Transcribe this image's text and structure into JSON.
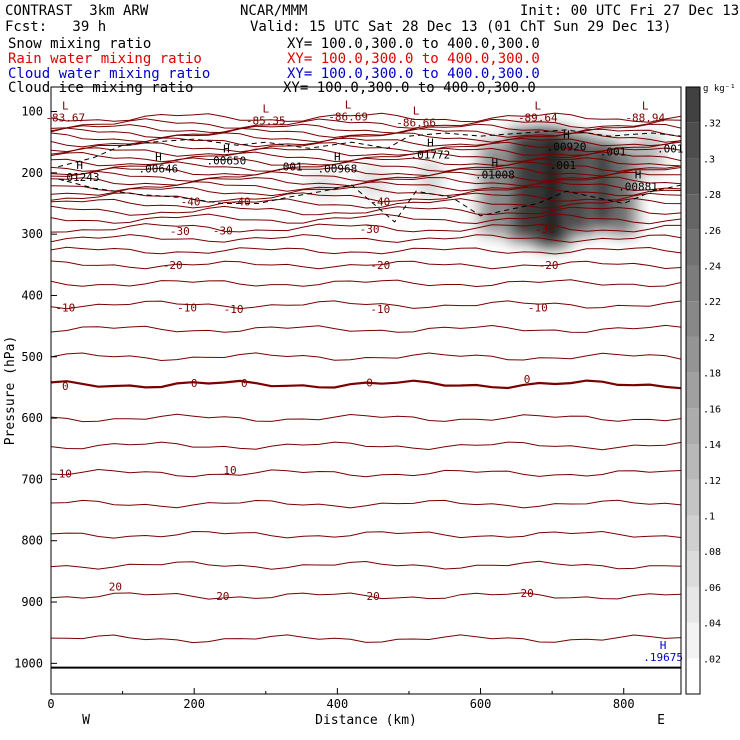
{
  "header": {
    "model": "CONTRAST  3km ARW",
    "center": "NCAR/MMM",
    "init": "Init: 00 UTC Fri 27 Dec 13",
    "fcst": "Fcst:   39 h",
    "valid": "Valid: 15 UTC Sat 28 Dec 13 (01 ChT Sun 29 Dec 13)"
  },
  "legend": [
    {
      "label": "Snow mixing ratio",
      "xy": "XY= 100.0,300.0 to 400.0,300.0",
      "color": "#000000"
    },
    {
      "label": "Rain water mixing ratio",
      "xy": "XY= 100.0,300.0 to 400.0,300.0",
      "color": "#e00000"
    },
    {
      "label": "Cloud water mixing ratio",
      "xy": "XY= 100.0,300.0 to 400.0,300.0",
      "color": "#0000cc"
    },
    {
      "label": "Cloud ice mixing ratio",
      "xy": "XY= 100.0,300.0 to 400.0,300.0",
      "color": "#000000"
    }
  ],
  "colors": {
    "temperature_contour": "#7a0000",
    "shading": "#000000",
    "cloud_water_label": "#0000cc"
  },
  "chart_data": {
    "type": "cross-section",
    "xlabel": "Distance (km)",
    "ylabel": "Pressure (hPa)",
    "xlim": [
      0,
      880
    ],
    "ylim": [
      1050,
      60
    ],
    "x_ticks": [
      0,
      200,
      400,
      600,
      800
    ],
    "y_ticks": [
      100,
      200,
      300,
      400,
      500,
      600,
      700,
      800,
      900,
      1000
    ],
    "x_end_labels": {
      "left": "W",
      "right": "E"
    },
    "colorbar": {
      "unit": "g kg⁻¹",
      "ticks": [
        ".02",
        ".04",
        ".06",
        ".08",
        ".1",
        ".12",
        ".14",
        ".16",
        ".18",
        ".2",
        ".22",
        ".24",
        ".26",
        ".28",
        ".3",
        ".32"
      ]
    },
    "temperature_contour_labels": [
      {
        "x": 20,
        "p": 690,
        "text": "10"
      },
      {
        "x": 250,
        "p": 685,
        "text": "10"
      },
      {
        "x": 90,
        "p": 875,
        "text": "20"
      },
      {
        "x": 240,
        "p": 890,
        "text": "20"
      },
      {
        "x": 450,
        "p": 890,
        "text": "20"
      },
      {
        "x": 665,
        "p": 885,
        "text": "20"
      },
      {
        "x": 20,
        "p": 548,
        "text": "0"
      },
      {
        "x": 200,
        "p": 543,
        "text": "0"
      },
      {
        "x": 270,
        "p": 543,
        "text": "0"
      },
      {
        "x": 445,
        "p": 542,
        "text": "0"
      },
      {
        "x": 665,
        "p": 536,
        "text": "0"
      },
      {
        "x": 20,
        "p": 420,
        "text": "-10"
      },
      {
        "x": 190,
        "p": 420,
        "text": "-10"
      },
      {
        "x": 255,
        "p": 422,
        "text": "-10"
      },
      {
        "x": 460,
        "p": 422,
        "text": "-10"
      },
      {
        "x": 680,
        "p": 420,
        "text": "-10"
      },
      {
        "x": 170,
        "p": 350,
        "text": "-20"
      },
      {
        "x": 460,
        "p": 350,
        "text": "-20"
      },
      {
        "x": 695,
        "p": 350,
        "text": "-20"
      },
      {
        "x": 180,
        "p": 295,
        "text": "-30"
      },
      {
        "x": 240,
        "p": 294,
        "text": "-30"
      },
      {
        "x": 445,
        "p": 292,
        "text": "-30"
      },
      {
        "x": 690,
        "p": 292,
        "text": "-30"
      },
      {
        "x": 195,
        "p": 247,
        "text": "-40"
      },
      {
        "x": 265,
        "p": 247,
        "text": "-40"
      },
      {
        "x": 460,
        "p": 247,
        "text": "-40"
      }
    ],
    "extrema": [
      {
        "x": 20,
        "p": 110,
        "kind": "L",
        "value": "-83.67"
      },
      {
        "x": 300,
        "p": 115,
        "kind": "L",
        "value": "-85.35"
      },
      {
        "x": 415,
        "p": 108,
        "kind": "L",
        "value": "-86.69"
      },
      {
        "x": 510,
        "p": 118,
        "kind": "L",
        "value": "-86.66"
      },
      {
        "x": 680,
        "p": 110,
        "kind": "L",
        "value": "-89.64"
      },
      {
        "x": 830,
        "p": 110,
        "kind": "L",
        "value": "-88.94"
      },
      {
        "x": 40,
        "p": 207,
        "kind": "H",
        "value": ".01243"
      },
      {
        "x": 150,
        "p": 193,
        "kind": "H",
        "value": ".00646"
      },
      {
        "x": 245,
        "p": 180,
        "kind": "H",
        "value": ".00650"
      },
      {
        "x": 333,
        "p": 190,
        "kind": "",
        "value": ".001"
      },
      {
        "x": 400,
        "p": 193,
        "kind": "H",
        "value": ".00968"
      },
      {
        "x": 530,
        "p": 170,
        "kind": "H",
        "value": ".01772"
      },
      {
        "x": 620,
        "p": 203,
        "kind": "H",
        "value": ".01008"
      },
      {
        "x": 715,
        "p": 187,
        "kind": "",
        "value": ".001"
      },
      {
        "x": 720,
        "p": 157,
        "kind": "H",
        "value": ".00920"
      },
      {
        "x": 785,
        "p": 165,
        "kind": "",
        "value": ".001"
      },
      {
        "x": 820,
        "p": 222,
        "kind": "H",
        "value": ".00881"
      },
      {
        "x": 865,
        "p": 160,
        "kind": "",
        "value": ".001"
      },
      {
        "x": 855,
        "p": 990,
        "kind": "H",
        "value": ".19675",
        "color": "#0000cc"
      }
    ],
    "snow_shading": [
      {
        "x": 620,
        "p_top": 150,
        "p_bot": 300,
        "w": 30,
        "v": 0.45
      },
      {
        "x": 665,
        "p_top": 130,
        "p_bot": 310,
        "w": 35,
        "v": 0.75
      },
      {
        "x": 700,
        "p_top": 130,
        "p_bot": 320,
        "w": 30,
        "v": 0.85
      },
      {
        "x": 735,
        "p_top": 140,
        "p_bot": 300,
        "w": 30,
        "v": 0.7
      },
      {
        "x": 770,
        "p_top": 150,
        "p_bot": 290,
        "w": 25,
        "v": 0.75
      },
      {
        "x": 800,
        "p_top": 160,
        "p_bot": 300,
        "w": 25,
        "v": 0.55
      },
      {
        "x": 835,
        "p_top": 140,
        "p_bot": 200,
        "w": 25,
        "v": 0.3
      },
      {
        "x": 380,
        "p_top": 200,
        "p_bot": 240,
        "w": 30,
        "v": 0.12
      },
      {
        "x": 450,
        "p_top": 190,
        "p_bot": 240,
        "w": 30,
        "v": 0.12
      },
      {
        "x": 530,
        "p_top": 180,
        "p_bot": 240,
        "w": 20,
        "v": 0.18
      }
    ]
  }
}
